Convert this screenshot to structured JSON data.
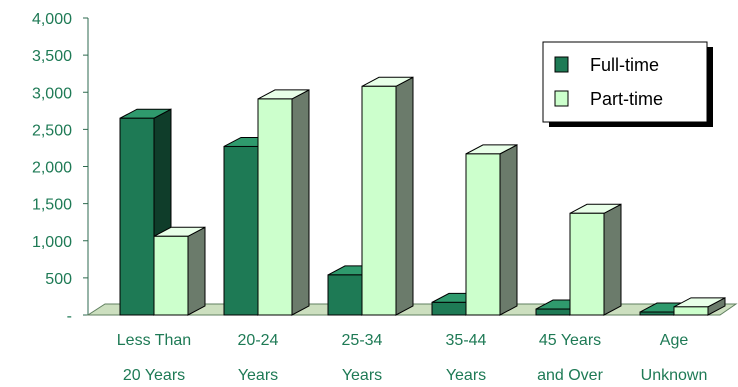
{
  "chart_data": {
    "type": "bar",
    "categories": [
      [
        "Less Than",
        "20 Years"
      ],
      [
        "20-24",
        "Years"
      ],
      [
        "25-34",
        "Years"
      ],
      [
        "35-44",
        "Years"
      ],
      [
        "45 Years",
        "and Over"
      ],
      [
        "Age",
        "Unknown"
      ]
    ],
    "series": [
      {
        "name": "Full-time",
        "values": [
          2650,
          2270,
          540,
          170,
          80,
          40
        ],
        "color": "#1e7a55",
        "side_color": "#0f3d2a",
        "top_color": "#2f9a6d"
      },
      {
        "name": "Part-time",
        "values": [
          1060,
          2910,
          3080,
          2170,
          1370,
          110
        ],
        "color": "#ccffcc",
        "side_color": "#6b7b6b",
        "top_color": "#e8ffe8"
      }
    ],
    "y_ticks": [
      "-",
      "500",
      "1,000",
      "1,500",
      "2,000",
      "2,500",
      "3,000",
      "3,500",
      "4,000"
    ],
    "ylim": [
      0,
      4000
    ],
    "legend_position": "top-right",
    "colors": {
      "text": "#1e7a55",
      "floor": "#ccdfbf",
      "axis": "#2d6a4f"
    }
  }
}
